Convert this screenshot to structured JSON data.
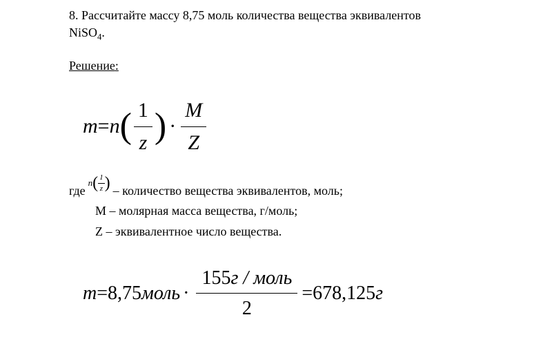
{
  "problem": {
    "number": "8.",
    "text_line1": "8. Рассчитайте массу 8,75 моль количества вещества эквивалентов",
    "text_line2": "NiSO",
    "subscript": "4",
    "period": "."
  },
  "solution_label": "Решение",
  "main_formula": {
    "m": "m",
    "eq": " = ",
    "n": "n",
    "one": "1",
    "z": "z",
    "dot": "·",
    "M": "M",
    "Z": "Z"
  },
  "where": {
    "label": "где",
    "line1_n": "n",
    "line1_one": "1",
    "line1_z": "z",
    "line1_text": " – количество вещества эквивалентов, моль;",
    "line2": "M – молярная масса вещества, г/моль;",
    "line3": "Z – эквивалентное число вещества."
  },
  "final": {
    "m": "m",
    "eq": " = ",
    "val1": "8,75",
    "unit1": "моль",
    "dot": "·",
    "num_val": "155",
    "num_unit": "г / моль",
    "den": "2",
    "eq2": " = ",
    "result": "678,125",
    "result_unit": "г"
  }
}
